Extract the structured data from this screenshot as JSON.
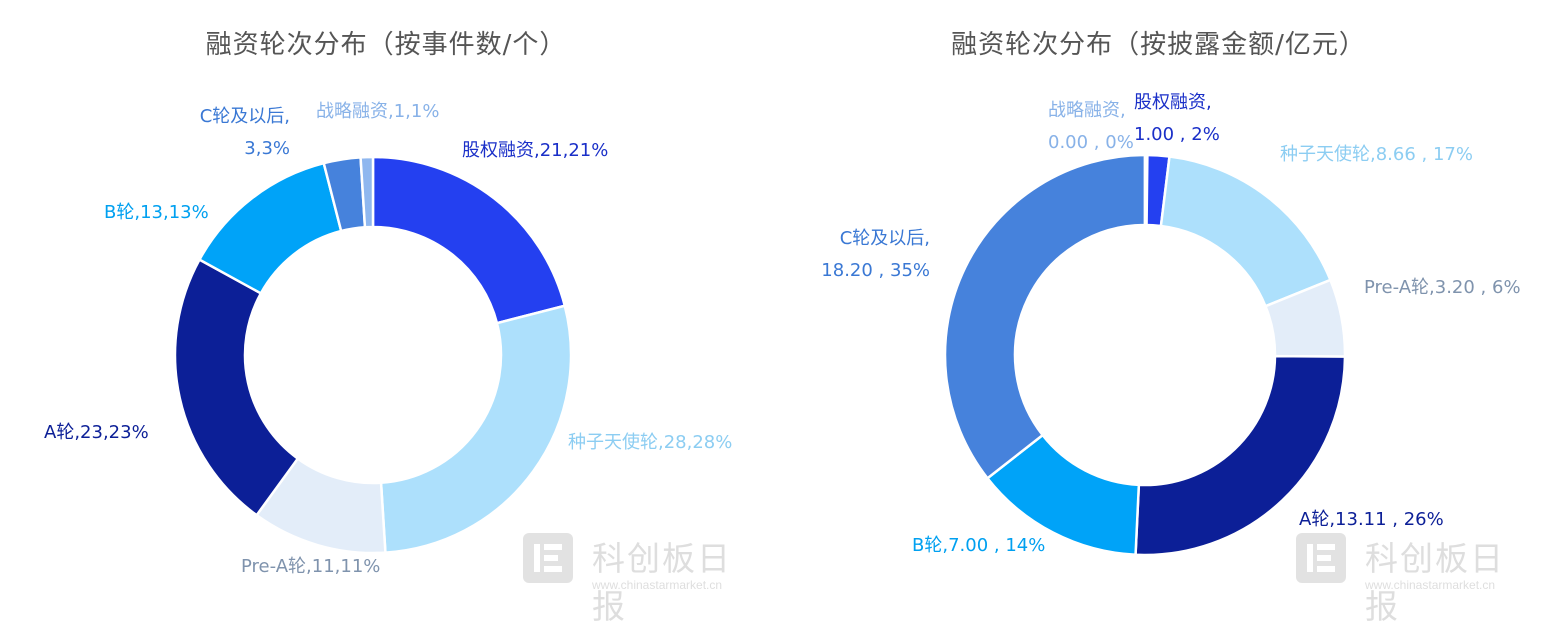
{
  "chart_data": [
    {
      "type": "pie",
      "variant": "donut",
      "title": "融资轮次分布（按事件数/个）",
      "series": [
        {
          "name": "股权融资",
          "value": 21,
          "percent": "21%",
          "label_value": "21",
          "color": "#2440f0",
          "label_color": "#1a2fc8"
        },
        {
          "name": "种子天使轮",
          "value": 28,
          "percent": "28%",
          "label_value": "28",
          "color": "#ade0fc",
          "label_color": "#8ccdf2"
        },
        {
          "name": "Pre-A轮",
          "value": 11,
          "percent": "11%",
          "label_value": "11",
          "color": "#e3edf9",
          "label_color": "#7f93ad"
        },
        {
          "name": "A轮",
          "value": 23,
          "percent": "23%",
          "label_value": "23",
          "color": "#0c1f97",
          "label_color": "#0c1f97"
        },
        {
          "name": "B轮",
          "value": 13,
          "percent": "13%",
          "label_value": "13",
          "color": "#00a3f8",
          "label_color": "#00a0f0"
        },
        {
          "name": "C轮及以后",
          "value": 3,
          "percent": "3%",
          "label_value": "3",
          "color": "#4682dc",
          "label_color": "#3a78d4"
        },
        {
          "name": "战略融资",
          "value": 1,
          "percent": "1%",
          "label_value": "1",
          "color": "#8fb7ef",
          "label_color": "#88b2e8"
        }
      ]
    },
    {
      "type": "pie",
      "variant": "donut",
      "title": "融资轮次分布（按披露金额/亿元）",
      "series": [
        {
          "name": "股权融资",
          "value": 1.0,
          "percent": "2%",
          "label_value": "1.00",
          "color": "#2440f0",
          "label_color": "#1a2fc8"
        },
        {
          "name": "种子天使轮",
          "value": 8.66,
          "percent": "17%",
          "label_value": "8.66",
          "color": "#ade0fc",
          "label_color": "#8ccdf2"
        },
        {
          "name": "Pre-A轮",
          "value": 3.2,
          "percent": "6%",
          "label_value": "3.20",
          "color": "#e3edf9",
          "label_color": "#7f93ad"
        },
        {
          "name": "A轮",
          "value": 13.11,
          "percent": "26%",
          "label_value": "13.11",
          "color": "#0c1f97",
          "label_color": "#0c1f97"
        },
        {
          "name": "B轮",
          "value": 7.0,
          "percent": "14%",
          "label_value": "7.00",
          "color": "#00a3f8",
          "label_color": "#00a0f0"
        },
        {
          "name": "C轮及以后",
          "value": 18.2,
          "percent": "35%",
          "label_value": "18.20",
          "color": "#4682dc",
          "label_color": "#3a78d4"
        },
        {
          "name": "战略融资",
          "value": 0.0,
          "percent": "0%",
          "label_value": "0.00",
          "color": "#8fb7ef",
          "label_color": "#88b2e8"
        }
      ]
    }
  ],
  "watermark": {
    "brand": "科创板日报",
    "url": "www.chinastarmarket.cn"
  }
}
